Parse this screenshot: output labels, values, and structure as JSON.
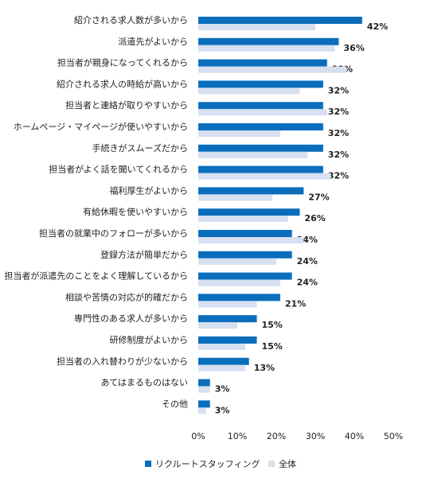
{
  "chart_data": {
    "type": "hbar",
    "categories": [
      "紹介される求人数が多いから",
      "派遣先がよいから",
      "担当者が親身になってくれるから",
      "紹介される求人の時給が高いから",
      "担当者と連絡が取りやすいから",
      "ホームページ・マイページが使いやすいから",
      "手続きがスムーズだから",
      "担当者がよく話を聞いてくれるから",
      "福利厚生がよいから",
      "有給休暇を使いやすいから",
      "担当者の就業中のフォローが多いから",
      "登録方法が簡単だから",
      "担当者が派遣先のことをよく理解しているから",
      "相談や苦情の対応が的確だから",
      "専門性のある求人が多いから",
      "研修制度がよいから",
      "担当者の入れ替わりが少ないから",
      "あてはまるものはない",
      "その他"
    ],
    "series": [
      {
        "name": "リクルートスタッフィング",
        "color": "#0a6ebd",
        "values": [
          42,
          36,
          33,
          32,
          32,
          32,
          32,
          32,
          27,
          26,
          24,
          24,
          24,
          21,
          15,
          15,
          13,
          3,
          3
        ],
        "value_labels": [
          "42%",
          "36%",
          "33%",
          "32%",
          "32%",
          "32%",
          "32%",
          "32%",
          "27%",
          "26%",
          "24%",
          "24%",
          "24%",
          "21%",
          "15%",
          "15%",
          "13%",
          "3%",
          "3%"
        ]
      },
      {
        "name": "全体",
        "color": "#d6e0f0",
        "values": [
          30,
          35,
          38,
          26,
          33,
          21,
          28,
          34,
          19,
          23,
          27,
          20,
          21,
          15,
          10,
          12,
          12,
          3,
          2
        ]
      }
    ],
    "xlim": [
      0,
      50
    ],
    "xticks": [
      {
        "value": 0,
        "label": "0%"
      },
      {
        "value": 10,
        "label": "10%"
      },
      {
        "value": 20,
        "label": "20%"
      },
      {
        "value": 30,
        "label": "30%"
      },
      {
        "value": 40,
        "label": "40%"
      },
      {
        "value": 50,
        "label": "50%"
      }
    ]
  }
}
